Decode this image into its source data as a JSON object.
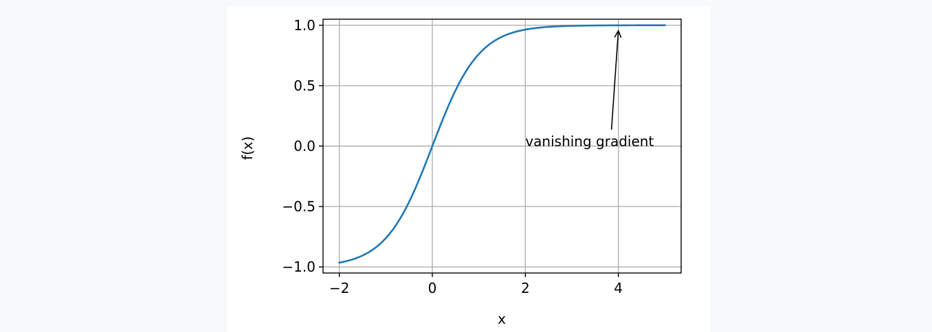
{
  "chart_data": {
    "type": "line",
    "title": "",
    "xlabel": "x",
    "ylabel": "f(x)",
    "xlim": [
      -2.35,
      5.35
    ],
    "ylim": [
      -1.05,
      1.05
    ],
    "xticks": [
      -2,
      0,
      2,
      4
    ],
    "xtick_labels": [
      "−2",
      "0",
      "2",
      "4"
    ],
    "yticks": [
      -1.0,
      -0.5,
      0.0,
      0.5,
      1.0
    ],
    "ytick_labels": [
      "−1.0",
      "−0.5",
      "0.0",
      "0.5",
      "1.0"
    ],
    "grid": true,
    "series": [
      {
        "function": "tanh",
        "x_range": [
          -2,
          5
        ],
        "color": "#1f77b4"
      }
    ],
    "annotations": [
      {
        "text": "vanishing gradient",
        "xy": [
          4,
          1.0
        ],
        "xytext": [
          2,
          0.0
        ]
      }
    ]
  }
}
